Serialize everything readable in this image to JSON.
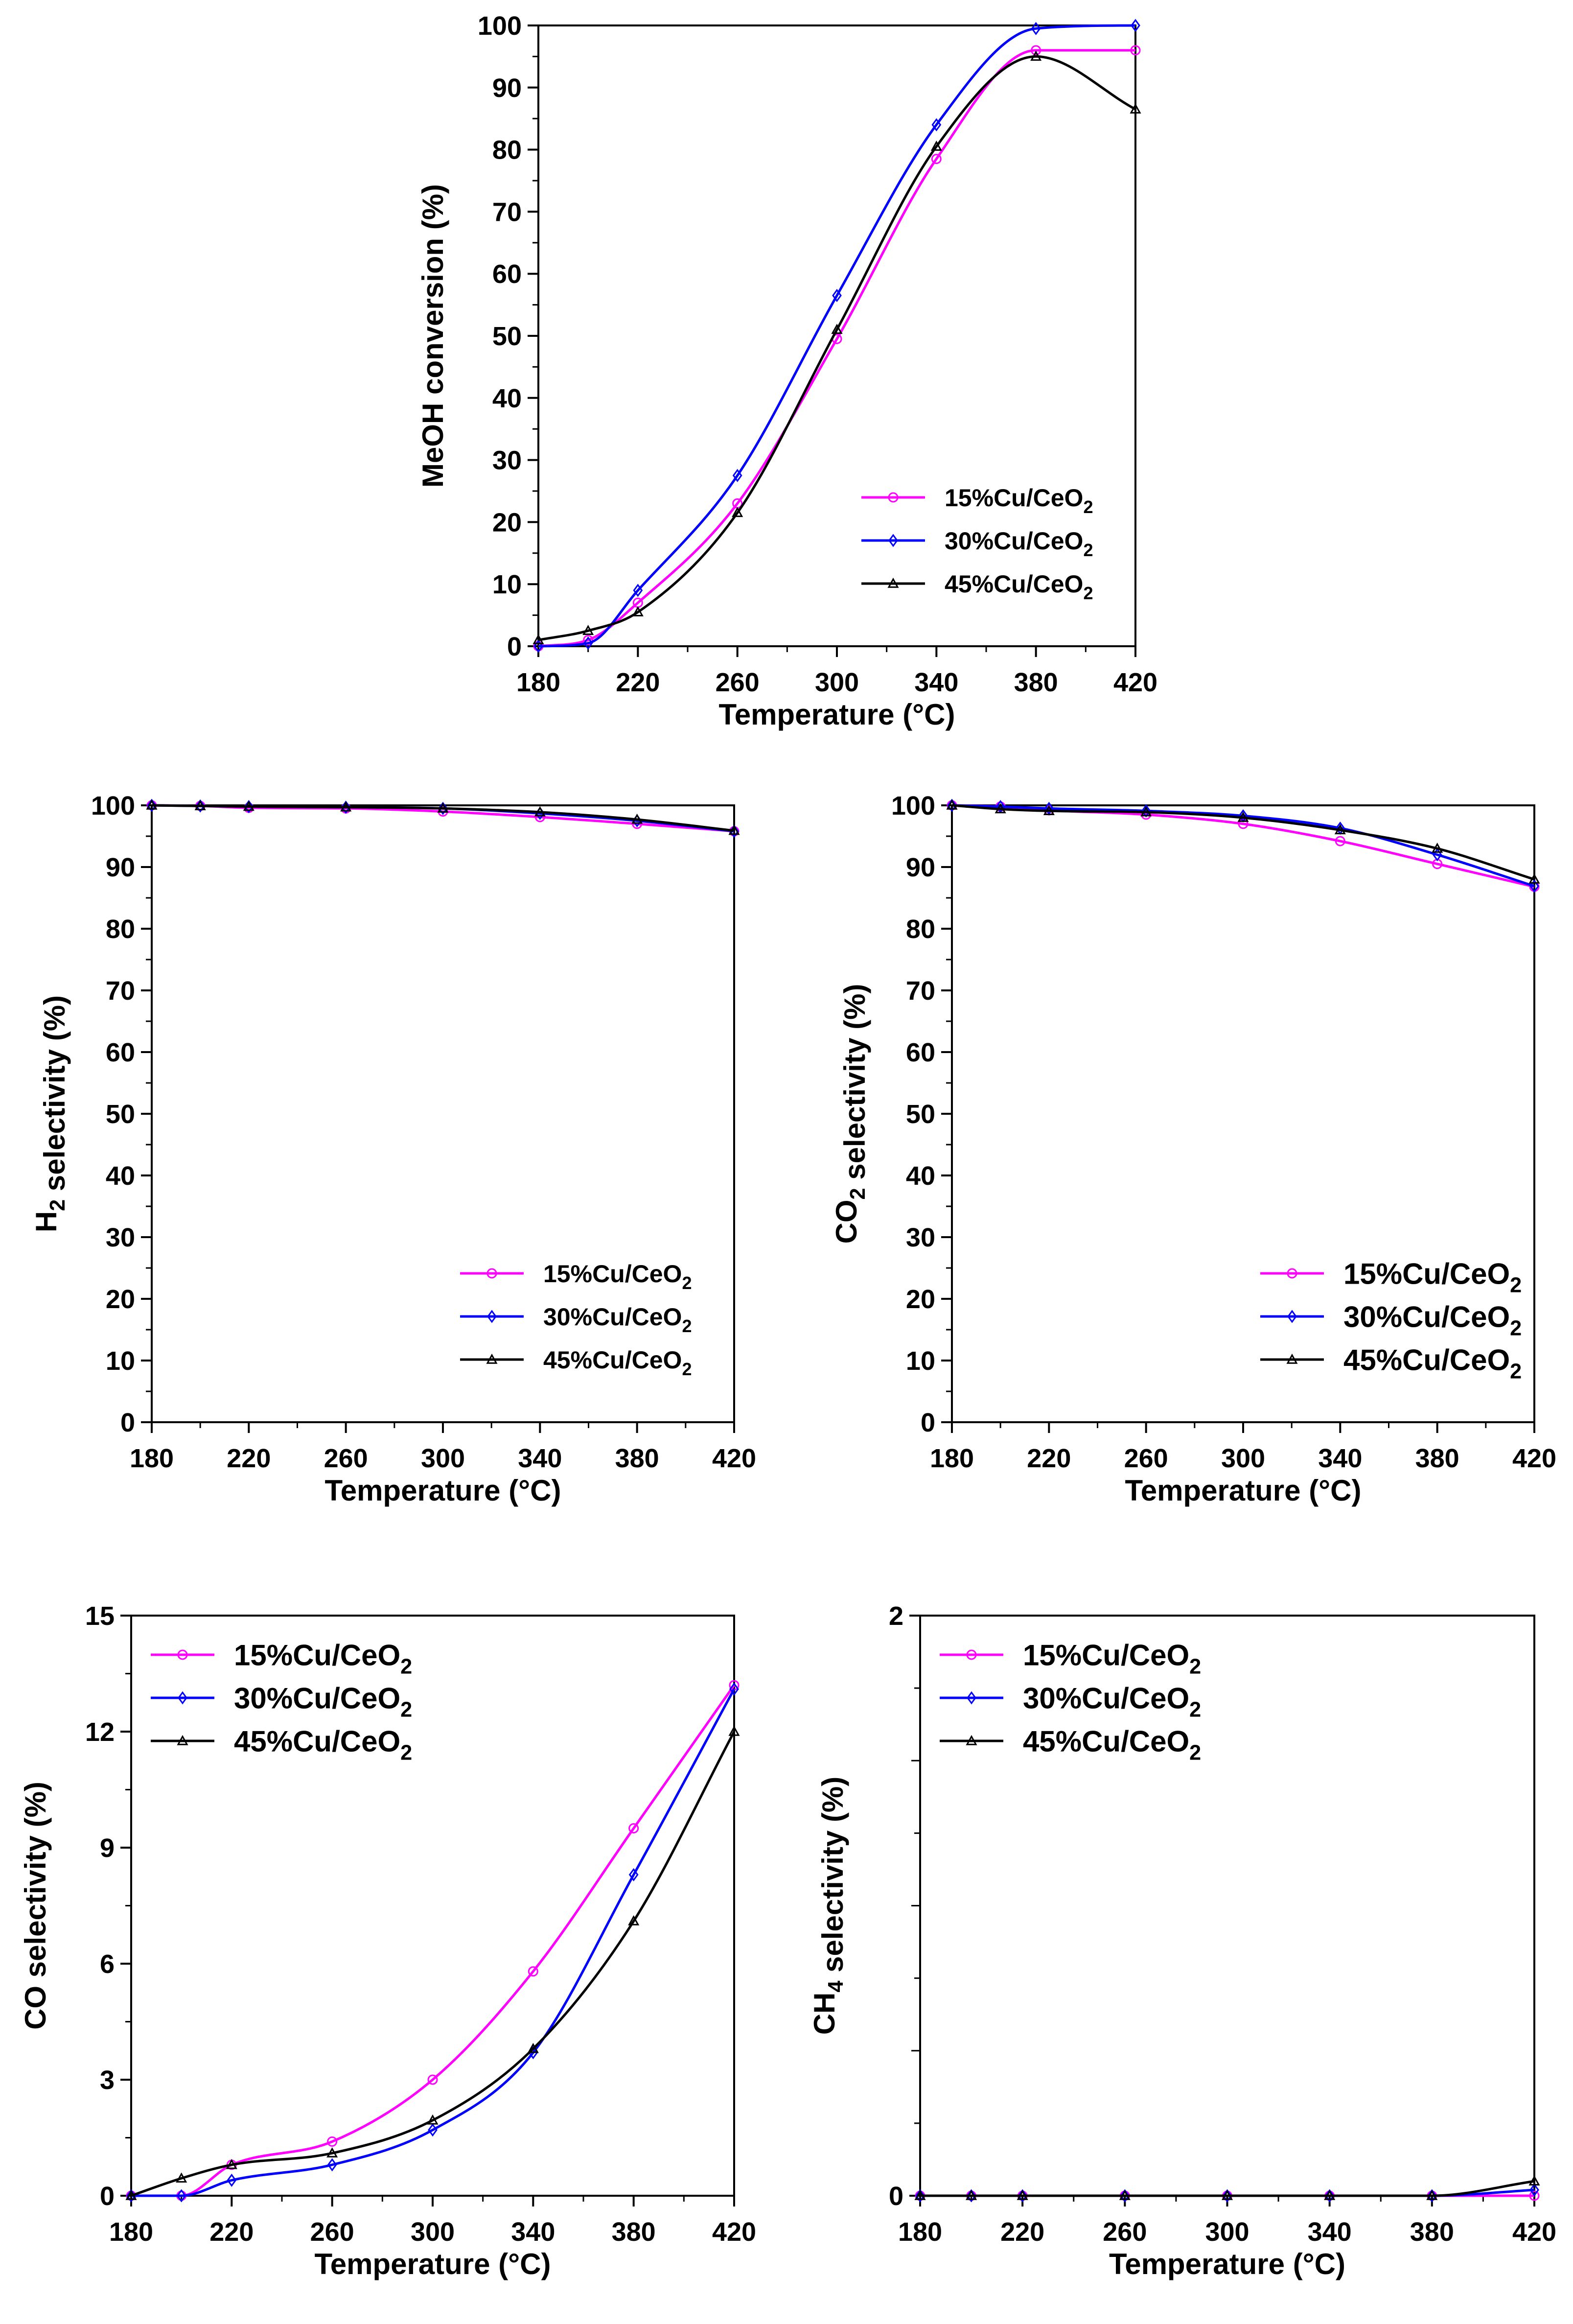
{
  "colors": {
    "s15": "#ff00ff",
    "s30": "#0000ff",
    "s45": "#000000"
  },
  "xlabel": "Temperature (°C)",
  "x_ticks": [
    "180",
    "220",
    "260",
    "300",
    "340",
    "380",
    "420"
  ],
  "x_range": [
    180,
    420
  ],
  "chart_data": [
    {
      "id": "meoh",
      "type": "line",
      "ylabel": "MeOH conversion (%)",
      "ylim": [
        0,
        100
      ],
      "y_ticks": [
        "0",
        "10",
        "20",
        "30",
        "40",
        "50",
        "60",
        "70",
        "80",
        "90",
        "100"
      ],
      "x_ticks": [
        "180",
        "220",
        "260",
        "300",
        "340",
        "380",
        "420"
      ],
      "legend_position": "bottom-right",
      "x": [
        180,
        200,
        220,
        260,
        300,
        340,
        380,
        420
      ],
      "series": [
        {
          "name": "15%Cu/CeO₂",
          "key": "s15",
          "marker": "circle",
          "values": [
            0.0,
            1.0,
            7.0,
            23.0,
            49.5,
            78.5,
            96.0,
            96.0
          ]
        },
        {
          "name": "30%Cu/CeO2",
          "key": "s30",
          "marker": "diamond",
          "values": [
            0.0,
            0.5,
            9.0,
            27.5,
            56.5,
            84.0,
            99.5,
            100.0
          ]
        },
        {
          "name": "45%Cu/CeO₂",
          "key": "s45",
          "marker": "triangle",
          "values": [
            1.0,
            2.5,
            5.5,
            21.5,
            51.0,
            80.5,
            95.0,
            86.5
          ]
        }
      ]
    },
    {
      "id": "h2",
      "type": "line",
      "ylabel": "H2 selectivity (%)",
      "ylim": [
        0,
        100
      ],
      "y_ticks": [
        "0",
        "10",
        "20",
        "30",
        "40",
        "50",
        "60",
        "70",
        "80",
        "90",
        "100"
      ],
      "x_ticks": [
        "180",
        "220",
        "260",
        "300",
        "340",
        "380",
        "420"
      ],
      "legend_position": "bottom-right",
      "x": [
        180,
        200,
        220,
        260,
        300,
        340,
        380,
        420
      ],
      "series": [
        {
          "name": "15%Cu/CeO₂",
          "key": "s15",
          "marker": "circle",
          "values": [
            100.0,
            99.9,
            99.6,
            99.5,
            99.0,
            98.1,
            97.0,
            95.8
          ]
        },
        {
          "name": "30%Cu/CeO2",
          "key": "s30",
          "marker": "diamond",
          "values": [
            100.0,
            99.9,
            99.8,
            99.7,
            99.5,
            98.7,
            97.5,
            95.8
          ]
        },
        {
          "name": "45%Cu/CeO2",
          "key": "s45",
          "marker": "triangle",
          "values": [
            100.0,
            99.9,
            99.8,
            99.7,
            99.5,
            98.9,
            97.7,
            95.9
          ]
        }
      ]
    },
    {
      "id": "co2",
      "type": "line",
      "ylabel": "CO2 selectivity (%)",
      "ylim": [
        0,
        100
      ],
      "y_ticks": [
        "0",
        "10",
        "20",
        "30",
        "40",
        "50",
        "60",
        "70",
        "80",
        "90",
        "100"
      ],
      "x_ticks": [
        "180",
        "220",
        "260",
        "300",
        "340",
        "380",
        "420"
      ],
      "legend_position": "bottom-right",
      "x": [
        180,
        200,
        220,
        260,
        300,
        340,
        380,
        420
      ],
      "series": [
        {
          "name": "15%Cu/CeO2",
          "key": "s15",
          "marker": "circle",
          "values": [
            100.0,
            99.8,
            99.2,
            98.5,
            97.0,
            94.2,
            90.5,
            86.8
          ]
        },
        {
          "name": "30%Cu/CeO2",
          "key": "s30",
          "marker": "diamond",
          "values": [
            100.0,
            99.8,
            99.5,
            99.1,
            98.3,
            96.3,
            92.0,
            86.9
          ]
        },
        {
          "name": "45%Cu/CeO2",
          "key": "s45",
          "marker": "triangle",
          "values": [
            100.0,
            99.4,
            99.1,
            98.9,
            98.0,
            96.0,
            93.0,
            88.0
          ]
        }
      ]
    },
    {
      "id": "co",
      "type": "line",
      "ylabel": "CO selectivity (%)",
      "ylim": [
        0,
        15
      ],
      "y_ticks": [
        "0",
        "3",
        "6",
        "9",
        "12",
        "15"
      ],
      "x_ticks": [
        "180",
        "220",
        "260",
        "300",
        "340",
        "380",
        "420"
      ],
      "legend_position": "top-left",
      "x": [
        180,
        200,
        220,
        260,
        300,
        340,
        380,
        420
      ],
      "series": [
        {
          "name": "15%Cu/CeO₂",
          "key": "s15",
          "marker": "circle",
          "values": [
            0.0,
            0.0,
            0.8,
            1.4,
            3.0,
            5.8,
            9.5,
            13.2
          ]
        },
        {
          "name": "30%Cu/CeO2",
          "key": "s30",
          "marker": "diamond",
          "values": [
            0.0,
            0.0,
            0.4,
            0.8,
            1.7,
            3.7,
            8.3,
            13.1
          ]
        },
        {
          "name": "45%Cu/CeO2",
          "key": "s45",
          "marker": "triangle",
          "values": [
            0.0,
            0.45,
            0.8,
            1.1,
            1.95,
            3.8,
            7.1,
            12.0
          ]
        }
      ]
    },
    {
      "id": "ch4",
      "type": "line",
      "ylabel": "CH4 selectivity (%)",
      "ylim": [
        0,
        2
      ],
      "y_ticks": [
        "0",
        "2"
      ],
      "x_ticks": [
        "180",
        "220",
        "260",
        "300",
        "340",
        "380",
        "420"
      ],
      "legend_position": "top-left",
      "x": [
        180,
        200,
        220,
        260,
        300,
        340,
        380,
        420
      ],
      "series": [
        {
          "name": "15%Cu/CeO2",
          "key": "s15",
          "marker": "circle",
          "values": [
            0,
            0,
            0,
            0,
            0,
            0,
            0,
            0
          ]
        },
        {
          "name": "30%Cu/CeO2",
          "key": "s30",
          "marker": "diamond",
          "values": [
            0,
            0,
            0,
            0,
            0,
            0,
            0,
            0.02
          ]
        },
        {
          "name": "45%Cu/CeO2",
          "key": "s45",
          "marker": "triangle",
          "values": [
            0,
            0,
            0,
            0,
            0,
            0,
            0,
            0.05
          ]
        }
      ]
    }
  ]
}
